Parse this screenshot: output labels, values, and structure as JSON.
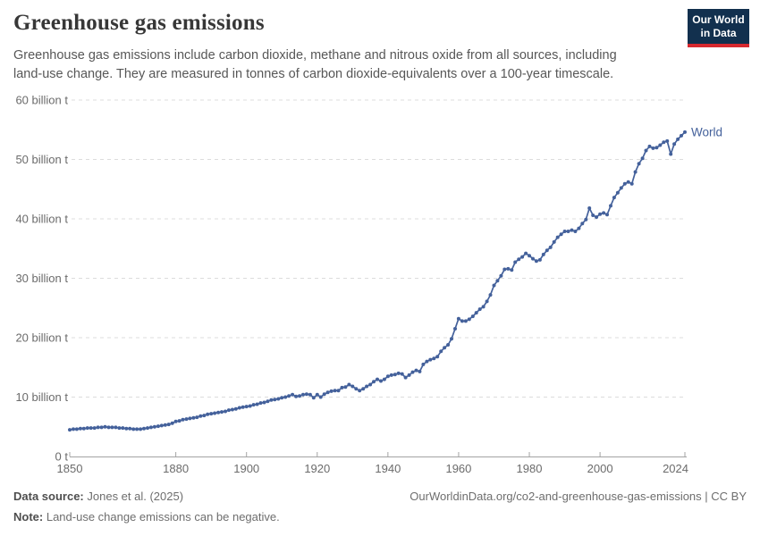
{
  "header": {
    "title": "Greenhouse gas emissions",
    "subtitle_lines": [
      "Greenhouse gas emissions include carbon dioxide, methane and nitrous oxide from all sources, including",
      "land-use change. They are measured in tonnes of carbon dioxide-equivalents over a 100-year timescale."
    ]
  },
  "logo": {
    "line1": "Our World",
    "line2": "in Data",
    "bg_color": "#12304e",
    "bar_color": "#d7282f"
  },
  "chart_data": {
    "type": "line",
    "title": "Greenhouse gas emissions",
    "xlabel": "",
    "ylabel": "",
    "unit_label": "billion t",
    "x_start": 1850,
    "x_end": 2024,
    "interval": "annual",
    "ylim": [
      0,
      60
    ],
    "grid": "horizontal-dashed",
    "legend": "end-of-line-label",
    "markers": true,
    "yticks": [
      {
        "value": 0,
        "label": "0 t"
      },
      {
        "value": 10,
        "label": "10 billion t"
      },
      {
        "value": 20,
        "label": "20 billion t"
      },
      {
        "value": 30,
        "label": "30 billion t"
      },
      {
        "value": 40,
        "label": "40 billion t"
      },
      {
        "value": 50,
        "label": "50 billion t"
      },
      {
        "value": 60,
        "label": "60 billion t"
      }
    ],
    "xticks": [
      1850,
      1880,
      1900,
      1920,
      1940,
      1960,
      1980,
      2000,
      2024
    ],
    "colors": {
      "line": "#44619B",
      "grid": "#dcdcdc",
      "axis": "#a3a3a3",
      "tick_text": "#6b6b6b"
    },
    "series": [
      {
        "name": "World",
        "color": "#44619B",
        "values": [
          4.5,
          4.6,
          4.6,
          4.7,
          4.7,
          4.8,
          4.8,
          4.8,
          4.9,
          4.9,
          5.0,
          4.9,
          4.9,
          4.9,
          4.8,
          4.8,
          4.7,
          4.7,
          4.6,
          4.6,
          4.6,
          4.7,
          4.8,
          4.9,
          5.0,
          5.1,
          5.2,
          5.3,
          5.4,
          5.6,
          5.9,
          6.0,
          6.2,
          6.3,
          6.4,
          6.5,
          6.6,
          6.8,
          6.9,
          7.1,
          7.2,
          7.3,
          7.4,
          7.5,
          7.6,
          7.8,
          7.9,
          8.0,
          8.2,
          8.3,
          8.4,
          8.5,
          8.7,
          8.8,
          9.0,
          9.1,
          9.3,
          9.5,
          9.6,
          9.7,
          9.9,
          10.0,
          10.2,
          10.4,
          10.1,
          10.2,
          10.4,
          10.5,
          10.4,
          9.9,
          10.4,
          10.0,
          10.5,
          10.8,
          11.0,
          11.1,
          11.1,
          11.6,
          11.7,
          12.1,
          11.8,
          11.4,
          11.1,
          11.4,
          11.8,
          12.1,
          12.6,
          13.0,
          12.7,
          13.0,
          13.5,
          13.7,
          13.8,
          14.0,
          13.9,
          13.3,
          13.7,
          14.2,
          14.5,
          14.3,
          15.5,
          16.0,
          16.3,
          16.5,
          16.8,
          17.7,
          18.3,
          18.8,
          19.8,
          21.5,
          23.2,
          22.8,
          22.8,
          23.1,
          23.6,
          24.2,
          24.8,
          25.2,
          26.1,
          27.2,
          28.8,
          29.6,
          30.4,
          31.5,
          31.6,
          31.4,
          32.7,
          33.2,
          33.6,
          34.2,
          33.8,
          33.3,
          32.9,
          33.1,
          34.0,
          34.7,
          35.2,
          36.1,
          36.9,
          37.4,
          37.9,
          37.9,
          38.1,
          37.9,
          38.4,
          39.2,
          39.9,
          41.8,
          40.6,
          40.3,
          40.8,
          41.0,
          40.7,
          42.2,
          43.6,
          44.4,
          45.2,
          45.9,
          46.2,
          45.9,
          47.9,
          49.3,
          50.2,
          51.5,
          52.2,
          51.9,
          52.0,
          52.4,
          52.9,
          53.1,
          50.9,
          52.6,
          53.4,
          54.0,
          54.6
        ]
      }
    ]
  },
  "footer": {
    "datasource_label": "Data source:",
    "datasource_value": "Jones et al. (2025)",
    "note_label": "Note:",
    "note_value": "Land-use change emissions can be negative.",
    "citation": "OurWorldinData.org/co2-and-greenhouse-gas-emissions | CC BY"
  }
}
